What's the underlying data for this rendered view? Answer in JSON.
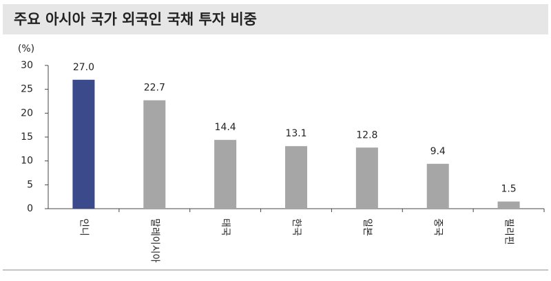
{
  "chart_data": {
    "type": "bar",
    "title": "주요 아시아 국가 외국인 국채 투자 비중",
    "y_axis_label": "(%)",
    "categories": [
      "인니",
      "말레이시아",
      "태국",
      "한국",
      "일본",
      "중국",
      "필리핀"
    ],
    "values": [
      27.0,
      22.7,
      14.4,
      13.1,
      12.8,
      9.4,
      1.5
    ],
    "value_labels": [
      "27.0",
      "22.7",
      "14.4",
      "13.1",
      "12.8",
      "9.4",
      "1.5"
    ],
    "colors": [
      "#3b4a8a",
      "#a6a6a6",
      "#a6a6a6",
      "#a6a6a6",
      "#a6a6a6",
      "#a6a6a6",
      "#a6a6a6"
    ],
    "ylim": [
      0,
      30
    ],
    "yticks": [
      0,
      5,
      10,
      15,
      20,
      25,
      30
    ],
    "grid": false
  }
}
